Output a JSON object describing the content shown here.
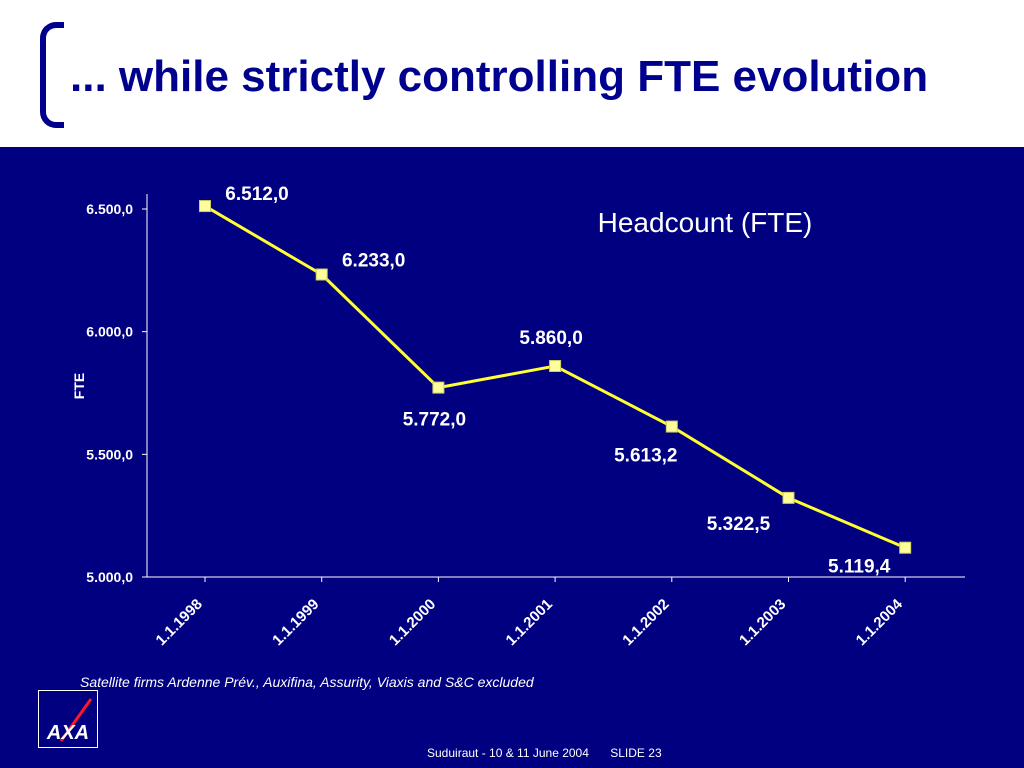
{
  "slide": {
    "title": "... while strictly controlling FTE evolution",
    "footnote": "Satellite firms Ardenne Prév., Auxifina, Assurity, Viaxis and S&C excluded",
    "footer_left": "Suduiraut - 10 & 11 June 2004",
    "footer_right": "SLIDE 23",
    "logo_text": "AXA"
  },
  "colors": {
    "background": "#000080",
    "title": "#00008f",
    "line": "#ffff33",
    "marker": "#ffff99",
    "text": "#ffffff",
    "logo_slash": "#ff1721"
  },
  "chart_data": {
    "type": "line",
    "title": "Headcount (FTE)",
    "xlabel": "",
    "ylabel": "FTE",
    "categories": [
      "1.1.1998",
      "1.1.1999",
      "1.1.2000",
      "1.1.2001",
      "1.1.2002",
      "1.1.2003",
      "1.1.2004"
    ],
    "values": [
      6512.0,
      6233.0,
      5772.0,
      5860.0,
      5613.2,
      5322.5,
      5119.4
    ],
    "data_labels": [
      "6.512,0",
      "6.233,0",
      "5.772,0",
      "5.860,0",
      "5.613,2",
      "5.322,5",
      "5.119,4"
    ],
    "ylim": [
      5000,
      6500
    ],
    "yticks": [
      5000,
      5500,
      6000,
      6500
    ],
    "ytick_labels": [
      "5.000,0",
      "5.500,0",
      "6.000,0",
      "6.500,0"
    ],
    "grid": false,
    "legend": "none"
  }
}
